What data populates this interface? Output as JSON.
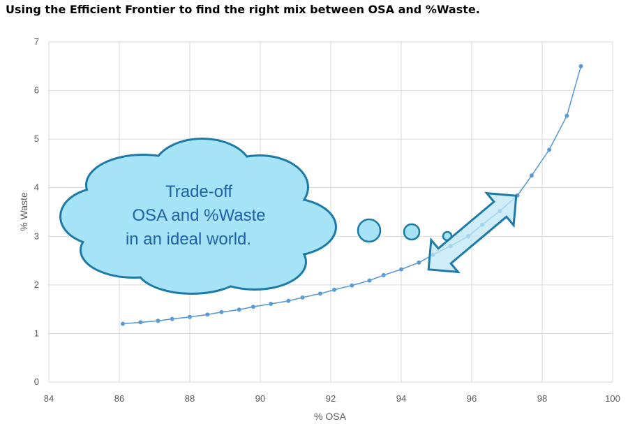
{
  "title": "Using the Efficient Frontier to find the right mix between OSA and %Waste.",
  "annotation": {
    "lines": [
      "Trade-off",
      "OSA and %Waste",
      "in an ideal world."
    ],
    "cloud_color": "#a6e3f7",
    "cloud_stroke": "#1b7aa8"
  },
  "chart_data": {
    "type": "line",
    "xlabel": "% OSA",
    "ylabel": "% Waste",
    "xlim": [
      84,
      100
    ],
    "ylim": [
      0,
      7
    ],
    "xticks": [
      84,
      86,
      88,
      90,
      92,
      94,
      96,
      98,
      100
    ],
    "yticks": [
      0,
      1,
      2,
      3,
      4,
      5,
      6,
      7
    ],
    "grid": true,
    "line_color": "#5b9bd5",
    "series": [
      {
        "x": [
          86.1,
          86.6,
          87.1,
          87.5,
          88.0,
          88.5,
          88.9,
          89.4,
          89.8,
          90.3,
          90.8,
          91.2,
          91.7,
          92.1,
          92.6,
          93.1,
          93.5,
          94.0,
          94.5,
          94.9,
          95.4,
          95.9,
          96.3,
          96.8,
          97.3,
          97.7,
          98.2,
          98.7,
          99.1
        ],
        "y": [
          1.2,
          1.23,
          1.26,
          1.3,
          1.34,
          1.39,
          1.44,
          1.49,
          1.55,
          1.61,
          1.67,
          1.74,
          1.82,
          1.9,
          1.99,
          2.09,
          2.2,
          2.32,
          2.46,
          2.62,
          2.8,
          3.0,
          3.24,
          3.52,
          3.84,
          4.25,
          4.78,
          5.48,
          6.5
        ]
      }
    ]
  }
}
